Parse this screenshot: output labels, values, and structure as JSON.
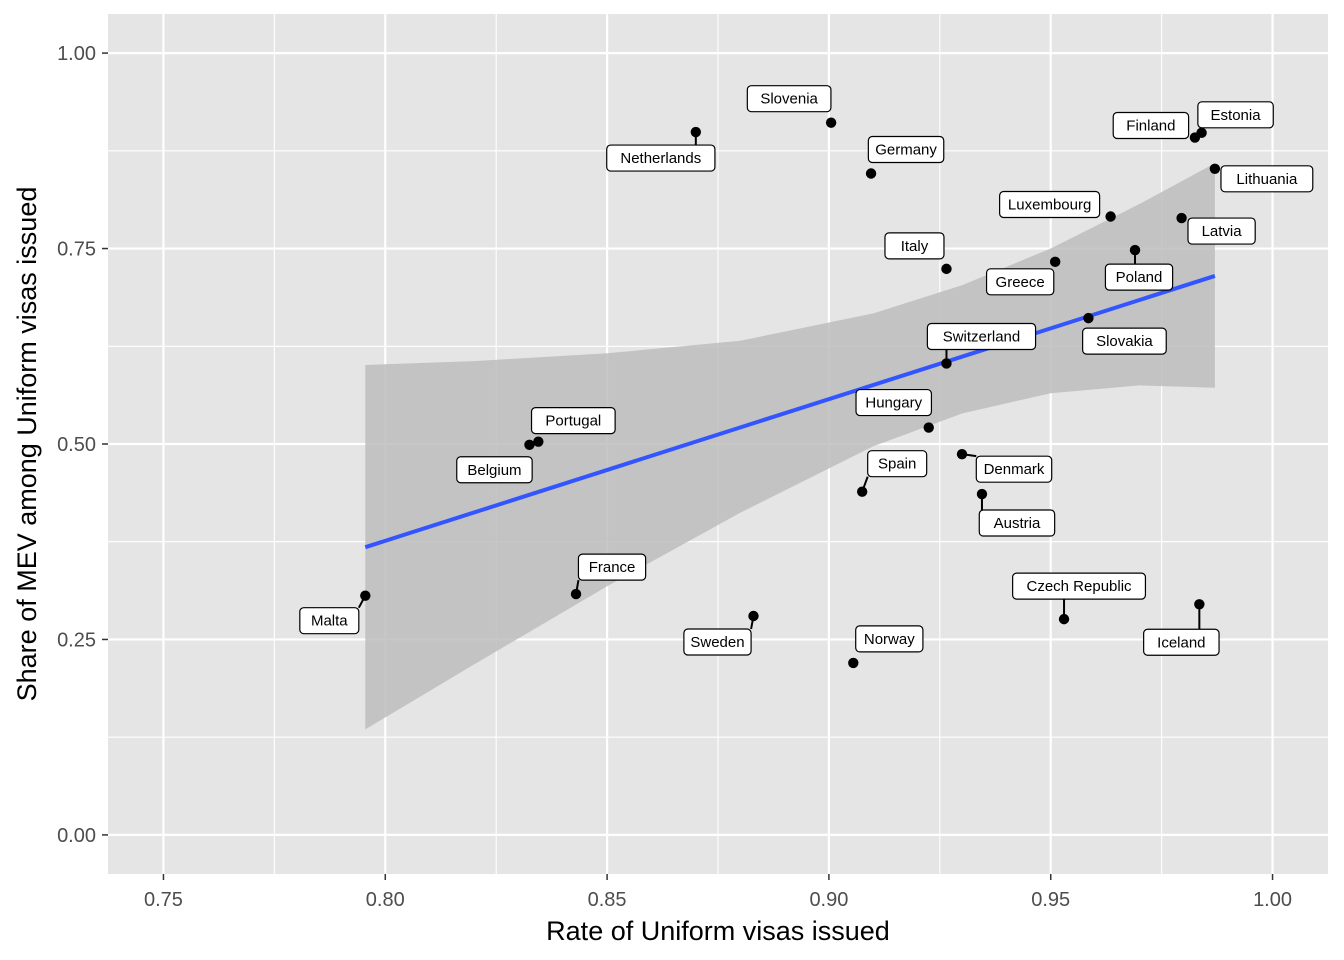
{
  "chart_data": {
    "type": "scatter",
    "title": "",
    "xlabel": "Rate of Uniform visas issued",
    "ylabel": "Share of MEV among Uniform visas issued",
    "xlim": [
      0.7375,
      1.0125
    ],
    "ylim": [
      -0.05,
      1.05
    ],
    "x_ticks": [
      "0.75",
      "0.80",
      "0.85",
      "0.90",
      "0.95",
      "1.00"
    ],
    "y_ticks": [
      "0.00",
      "0.25",
      "0.50",
      "0.75",
      "1.00"
    ],
    "grid": true,
    "legend": "none",
    "colors": {
      "panel": "#e5e5e5",
      "grid": "#ffffff",
      "point": "#000000",
      "line": "#3355ff",
      "ribbon": "#bdbdbd"
    },
    "points": [
      {
        "label": "Malta",
        "x": 0.7955,
        "y": 0.306
      },
      {
        "label": "Belgium",
        "x": 0.8325,
        "y": 0.499
      },
      {
        "label": "Portugal",
        "x": 0.8345,
        "y": 0.503
      },
      {
        "label": "France",
        "x": 0.843,
        "y": 0.308
      },
      {
        "label": "Netherlands",
        "x": 0.87,
        "y": 0.899
      },
      {
        "label": "Sweden",
        "x": 0.883,
        "y": 0.28
      },
      {
        "label": "Slovenia",
        "x": 0.9005,
        "y": 0.911
      },
      {
        "label": "Norway",
        "x": 0.9055,
        "y": 0.22
      },
      {
        "label": "Spain",
        "x": 0.9075,
        "y": 0.439
      },
      {
        "label": "Germany",
        "x": 0.9095,
        "y": 0.846
      },
      {
        "label": "Hungary",
        "x": 0.9225,
        "y": 0.521
      },
      {
        "label": "Switzerland",
        "x": 0.9265,
        "y": 0.603
      },
      {
        "label": "Italy",
        "x": 0.9265,
        "y": 0.724
      },
      {
        "label": "Denmark",
        "x": 0.93,
        "y": 0.487
      },
      {
        "label": "Austria",
        "x": 0.9345,
        "y": 0.436
      },
      {
        "label": "Greece",
        "x": 0.951,
        "y": 0.733
      },
      {
        "label": "Czech Republic",
        "x": 0.953,
        "y": 0.276
      },
      {
        "label": "Slovakia",
        "x": 0.9585,
        "y": 0.661
      },
      {
        "label": "Luxembourg",
        "x": 0.9635,
        "y": 0.791
      },
      {
        "label": "Poland",
        "x": 0.969,
        "y": 0.748
      },
      {
        "label": "Latvia",
        "x": 0.9795,
        "y": 0.789
      },
      {
        "label": "Finland",
        "x": 0.9825,
        "y": 0.892
      },
      {
        "label": "Iceland",
        "x": 0.9835,
        "y": 0.295
      },
      {
        "label": "Estonia",
        "x": 0.984,
        "y": 0.898
      },
      {
        "label": "Lithuania",
        "x": 0.987,
        "y": 0.852
      }
    ],
    "fit_line": {
      "x": [
        0.7955,
        0.987
      ],
      "y": [
        0.368,
        0.715
      ]
    },
    "confidence_band": {
      "x": [
        0.7955,
        0.82,
        0.85,
        0.88,
        0.91,
        0.93,
        0.95,
        0.97,
        0.987
      ],
      "upper": [
        0.601,
        0.606,
        0.616,
        0.632,
        0.667,
        0.703,
        0.75,
        0.807,
        0.859
      ],
      "lower": [
        0.135,
        0.218,
        0.318,
        0.412,
        0.497,
        0.539,
        0.565,
        0.575,
        0.572
      ]
    }
  }
}
